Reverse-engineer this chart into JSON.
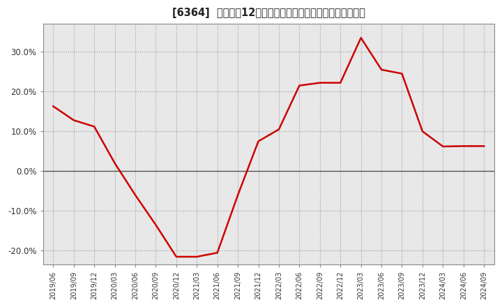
{
  "title": "[6364]  売上高の12か月移動合計の対前年同期増減率の推移",
  "line_color": "#cc0000",
  "plot_bg_color": "#e8e8e8",
  "fig_bg_color": "#ffffff",
  "grid_color": "#999999",
  "zero_line_color": "#555555",
  "border_color": "#888888",
  "dates": [
    "2019/06",
    "2019/09",
    "2019/12",
    "2020/03",
    "2020/06",
    "2020/09",
    "2020/12",
    "2021/03",
    "2021/06",
    "2021/09",
    "2021/12",
    "2022/03",
    "2022/06",
    "2022/09",
    "2022/12",
    "2023/03",
    "2023/06",
    "2023/09",
    "2023/12",
    "2024/03",
    "2024/06",
    "2024/09"
  ],
  "values": [
    0.163,
    0.128,
    0.112,
    0.02,
    -0.06,
    -0.135,
    -0.215,
    -0.215,
    -0.205,
    -0.06,
    0.075,
    0.105,
    0.215,
    0.222,
    0.222,
    0.335,
    0.255,
    0.245,
    0.1,
    0.062,
    0.063,
    0.063
  ],
  "yticks": [
    -0.2,
    -0.1,
    0.0,
    0.1,
    0.2,
    0.3
  ],
  "ylim": [
    -0.235,
    0.37
  ],
  "figsize": [
    7.2,
    4.4
  ],
  "dpi": 100
}
